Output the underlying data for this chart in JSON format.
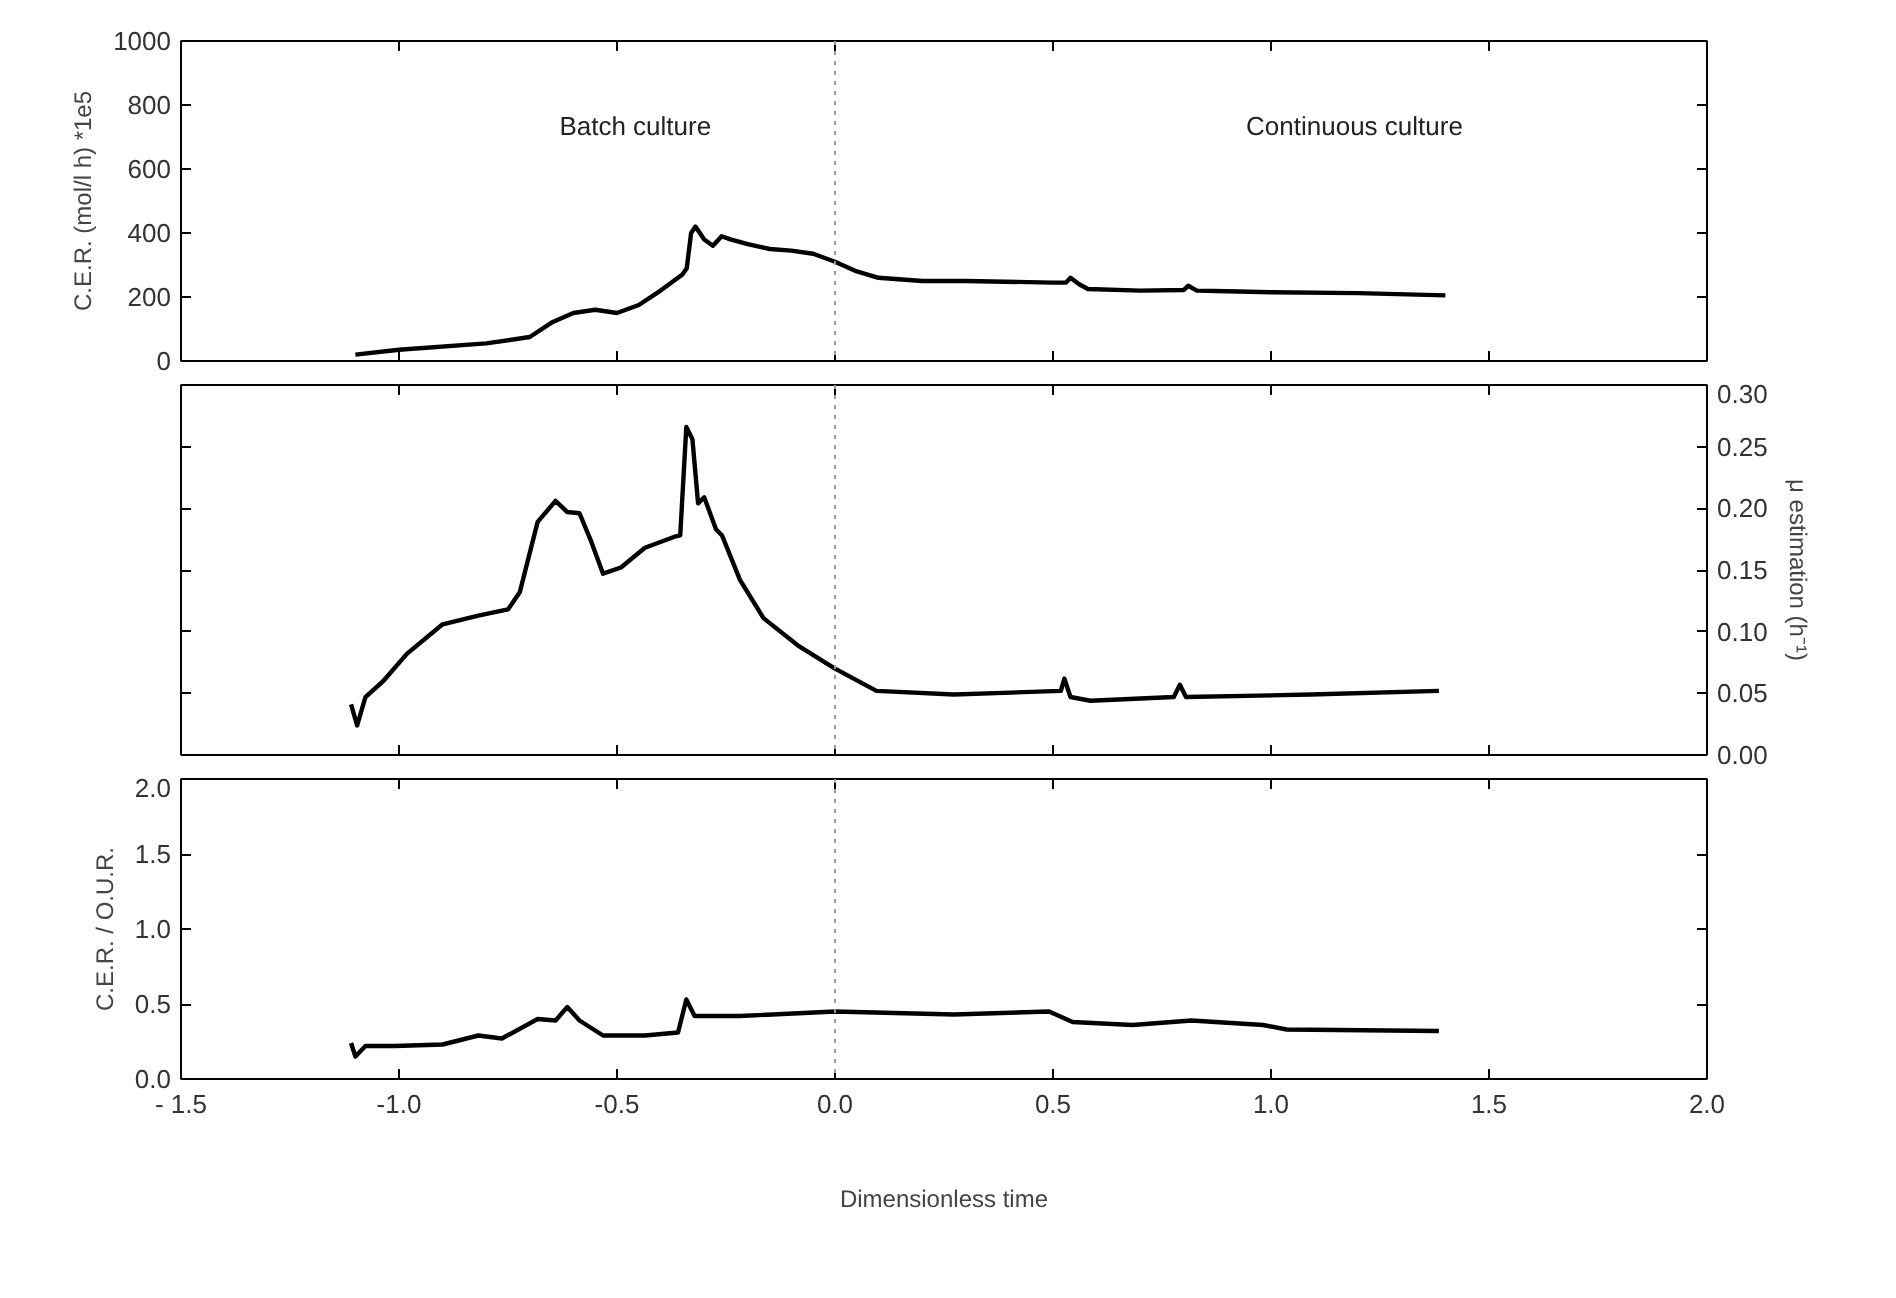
{
  "chart_data": [
    {
      "type": "line",
      "ylabel": "C.E.R. (mol/l h) *1e5",
      "xlim": [
        -1.5,
        2.0
      ],
      "xticks": [
        -1.5,
        -1.0,
        -0.5,
        0.0,
        0.5,
        1.0,
        1.5,
        2.0
      ],
      "ylim": [
        0,
        1000
      ],
      "yticks": [
        0,
        200,
        400,
        600,
        800,
        1000
      ],
      "tick_labels": "y",
      "grid": false,
      "annotations": [
        "Batch culture",
        "Continuous culture"
      ],
      "ref_lines": [
        {
          "axis": "x",
          "value": 0,
          "label": null,
          "color": "#999999",
          "line_style": "dotted"
        }
      ],
      "series": [
        {
          "color": "#000000",
          "x": [
            -1.1,
            -1.0,
            -0.8,
            -0.7,
            -0.65,
            -0.6,
            -0.55,
            -0.5,
            -0.45,
            -0.4,
            -0.35,
            -0.34,
            -0.33,
            -0.32,
            -0.3,
            -0.28,
            -0.26,
            -0.24,
            -0.2,
            -0.15,
            -0.1,
            -0.05,
            0.0,
            0.05,
            0.1,
            0.2,
            0.3,
            0.5,
            0.53,
            0.54,
            0.56,
            0.58,
            0.7,
            0.8,
            0.81,
            0.83,
            0.9,
            1.0,
            1.2,
            1.4
          ],
          "values": [
            20,
            35,
            55,
            75,
            120,
            150,
            160,
            150,
            175,
            220,
            270,
            290,
            400,
            420,
            380,
            360,
            390,
            380,
            365,
            350,
            345,
            335,
            310,
            280,
            260,
            250,
            250,
            245,
            245,
            260,
            240,
            225,
            220,
            222,
            235,
            220,
            218,
            215,
            212,
            205
          ]
        }
      ]
    },
    {
      "type": "line",
      "y2label": "μ estimation (h⁻¹)",
      "xlim": [
        -1.5,
        2.0
      ],
      "xticks": [
        -1.5,
        -1.0,
        -0.5,
        0.0,
        0.5,
        1.0,
        1.5,
        2.0
      ],
      "y2lim": [
        0,
        0.3
      ],
      "y2ticks": [
        {
          "value": 0,
          "label": "0.00"
        },
        0.05,
        {
          "value": 0.1,
          "label": "0.10"
        },
        0.15,
        {
          "value": 0.2,
          "label": "0.20"
        },
        0.25,
        {
          "value": 0.3,
          "label": "0.30"
        }
      ],
      "tick_labels": "y",
      "grid": false,
      "ref_lines": [
        {
          "axis": "x",
          "value": 0,
          "label": null,
          "color": "#999999",
          "line_style": "dotted"
        }
      ],
      "series": [
        {
          "color": "#000000",
          "axis": "y2",
          "x": [
            -1.11,
            -1.096,
            -1.077,
            -1.036,
            -0.982,
            -0.9,
            -0.818,
            -0.75,
            -0.723,
            -0.682,
            -0.641,
            -0.614,
            -0.586,
            -0.559,
            -0.532,
            -0.491,
            -0.436,
            -0.368,
            -0.355,
            -0.341,
            -0.327,
            -0.314,
            -0.3,
            -0.273,
            -0.259,
            -0.218,
            -0.164,
            -0.082,
            0.0,
            0.095,
            0.273,
            0.518,
            0.526,
            0.54,
            0.586,
            0.777,
            0.791,
            0.805,
            1.091,
            1.385
          ],
          "values": [
            0.041,
            0.024,
            0.047,
            0.06,
            0.082,
            0.106,
            0.113,
            0.118,
            0.132,
            0.189,
            0.206,
            0.197,
            0.196,
            0.173,
            0.147,
            0.152,
            0.168,
            0.177,
            0.178,
            0.266,
            0.256,
            0.204,
            0.209,
            0.183,
            0.178,
            0.142,
            0.111,
            0.088,
            0.07,
            0.052,
            0.049,
            0.052,
            0.062,
            0.047,
            0.044,
            0.047,
            0.057,
            0.047,
            0.049,
            0.052
          ]
        }
      ]
    },
    {
      "type": "line",
      "xlabel": "Dimensionless time",
      "ylabel": "C.E.R. / O.U.R.",
      "xlim": [
        -1.5,
        2.0
      ],
      "xticks": [
        {
          "value": -1.5,
          "label": "- 1.5"
        },
        {
          "value": -1.0,
          "label": "-1.0"
        },
        {
          "value": -0.5,
          "label": "-0.5"
        },
        {
          "value": 0.0,
          "label": "0.0"
        },
        0.5,
        {
          "value": 1.0,
          "label": "1.0"
        },
        1.5,
        {
          "value": 2.0,
          "label": "2.0"
        }
      ],
      "ylim": [
        0,
        2.0
      ],
      "yticks": [
        {
          "value": 0,
          "label": "0.0"
        },
        0.5,
        {
          "value": 1,
          "label": "1.0"
        },
        1.5,
        {
          "value": 2,
          "label": "2.0"
        }
      ],
      "grid": false,
      "ref_lines": [
        {
          "axis": "x",
          "value": 0,
          "label": null,
          "color": "#999999",
          "line_style": "dotted"
        }
      ],
      "series": [
        {
          "color": "#000000",
          "x": [
            -1.11,
            -1.1,
            -1.077,
            -1.009,
            -0.9,
            -0.818,
            -0.764,
            -0.682,
            -0.641,
            -0.614,
            -0.586,
            -0.532,
            -0.436,
            -0.36,
            -0.341,
            -0.322,
            -0.218,
            0.0,
            0.273,
            0.491,
            0.545,
            0.682,
            0.818,
            0.982,
            1.036,
            1.385
          ],
          "values": [
            0.24,
            0.15,
            0.22,
            0.22,
            0.23,
            0.29,
            0.27,
            0.4,
            0.39,
            0.48,
            0.39,
            0.29,
            0.29,
            0.31,
            0.53,
            0.42,
            0.42,
            0.45,
            0.43,
            0.45,
            0.38,
            0.36,
            0.39,
            0.36,
            0.33,
            0.32
          ]
        }
      ]
    }
  ]
}
